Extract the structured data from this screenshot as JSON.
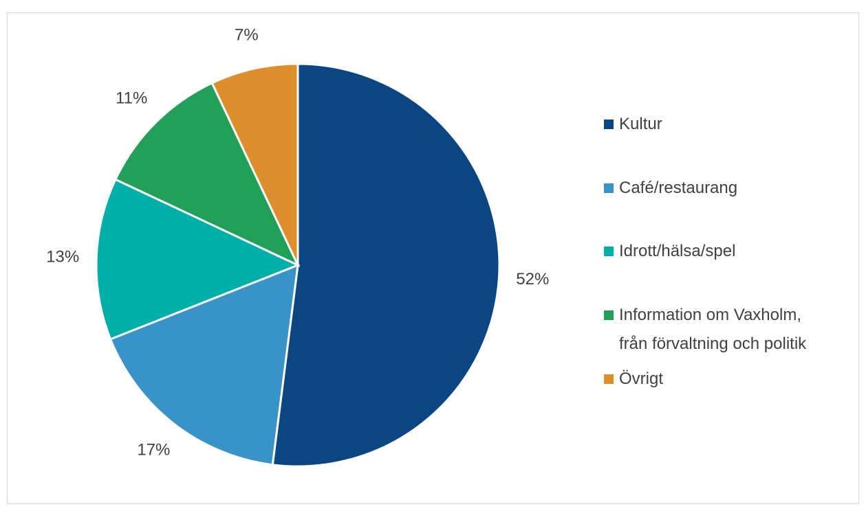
{
  "chart_data": {
    "type": "pie",
    "categories": [
      "Kultur",
      "Café/restaurang",
      "Idrott/hälsa/spel",
      "Information om Vaxholm, från förvaltning och politik",
      "Övrigt"
    ],
    "values": [
      52,
      17,
      13,
      11,
      7
    ],
    "value_labels": [
      "52%",
      "17%",
      "13%",
      "11%",
      "7%"
    ],
    "colors": [
      "#0b4683",
      "#3a93c6",
      "#00b0a8",
      "#22a05a",
      "#dd8f2d"
    ],
    "legend": "right"
  }
}
